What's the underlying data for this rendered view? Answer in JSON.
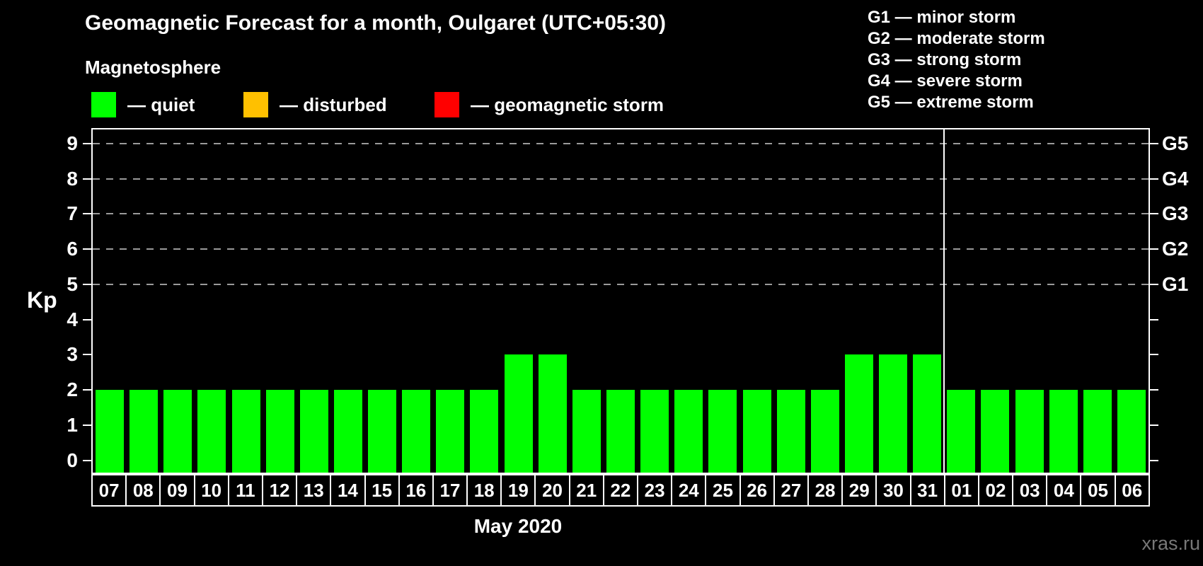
{
  "title": "Geomagnetic Forecast for a month, Oulgaret (UTC+05:30)",
  "watermark": "xras.ru",
  "legend": {
    "heading": "Magnetosphere",
    "items": [
      {
        "name": "quiet",
        "label": "— quiet",
        "color": "#00ff00",
        "x": 0
      },
      {
        "name": "disturbed",
        "label": "— disturbed",
        "color": "#ffc000",
        "x": 215
      },
      {
        "name": "geomagnetic-storm",
        "label": "— geomagnetic storm",
        "color": "#ff0000",
        "x": 485
      }
    ]
  },
  "storm_scale_legend": [
    "G1 — minor storm",
    "G2 — moderate storm",
    "G3 — strong storm",
    "G4 — severe storm",
    "G5 — extreme storm"
  ],
  "chart_data": {
    "type": "bar",
    "title": "Geomagnetic Forecast for a month, Oulgaret (UTC+05:30)",
    "xlabel": "May 2020",
    "ylabel": "Kp",
    "ylim": [
      -0.35,
      9.4
    ],
    "yticks": [
      0,
      1,
      2,
      3,
      4,
      5,
      6,
      7,
      8,
      9
    ],
    "gridlines_at": [
      5,
      6,
      7,
      8,
      9
    ],
    "right_axis_labels": [
      {
        "kp": 5,
        "label": "G1"
      },
      {
        "kp": 6,
        "label": "G2"
      },
      {
        "kp": 7,
        "label": "G3"
      },
      {
        "kp": 8,
        "label": "G4"
      },
      {
        "kp": 9,
        "label": "G5"
      }
    ],
    "categories": [
      "07",
      "08",
      "09",
      "10",
      "11",
      "12",
      "13",
      "14",
      "15",
      "16",
      "17",
      "18",
      "19",
      "20",
      "21",
      "22",
      "23",
      "24",
      "25",
      "26",
      "27",
      "28",
      "29",
      "30",
      "31",
      "01",
      "02",
      "03",
      "04",
      "05",
      "06"
    ],
    "values": [
      2,
      2,
      2,
      2,
      2,
      2,
      2,
      2,
      2,
      2,
      2,
      2,
      3,
      3,
      2,
      2,
      2,
      2,
      2,
      2,
      2,
      2,
      3,
      3,
      3,
      2,
      2,
      2,
      2,
      2,
      2
    ],
    "month_separator_after_index": 24,
    "colors": {
      "quiet": "#00ff00",
      "disturbed": "#ffc000",
      "storm": "#ff0000"
    },
    "grid": true,
    "legend_position": "top"
  }
}
